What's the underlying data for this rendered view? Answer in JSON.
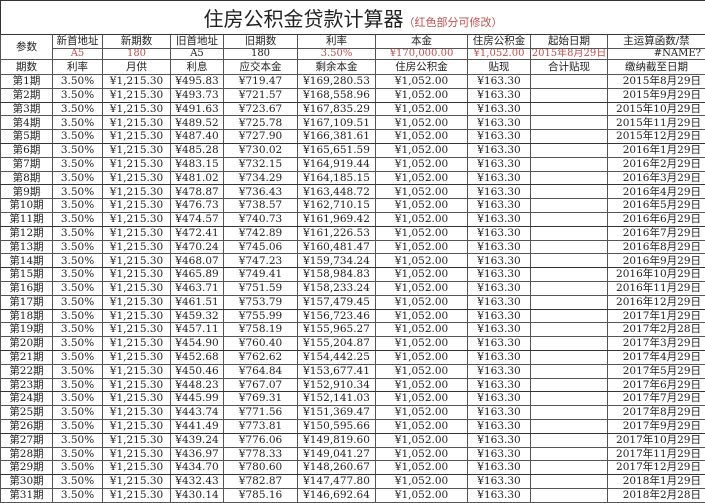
{
  "title": "住房公积金贷款计算器",
  "title_note": "（红色部分可修改）",
  "colors": {
    "editable": "#c0504d",
    "border": "#555555"
  },
  "params": {
    "label": "参数",
    "items": [
      {
        "label": "新首地址",
        "value": "A5",
        "editable": true
      },
      {
        "label": "新期数",
        "value": "180",
        "editable": true
      },
      {
        "label": "旧首地址",
        "value": "A5",
        "editable": false
      },
      {
        "label": "旧期数",
        "value": "180",
        "editable": false
      },
      {
        "label": "利率",
        "value": "3.50%",
        "editable": true
      },
      {
        "label": "本金",
        "value": "¥170,000.00",
        "editable": true
      },
      {
        "label": "住房公积金",
        "value": "¥1,052.00",
        "editable": true
      },
      {
        "label": "起始日期",
        "value": "2015年8月29日",
        "editable": true
      },
      {
        "label": "主运算函数/禁",
        "value": "#NAME?",
        "editable": false
      }
    ]
  },
  "columns": [
    "期数",
    "利率",
    "月供",
    "利息",
    "应交本金",
    "剩余本金",
    "住房公积金",
    "贴现",
    "合计贴现",
    "缴纳截至日期"
  ],
  "rows": [
    [
      "第1期",
      "3.50%",
      "¥1,215.30",
      "¥495.83",
      "¥719.47",
      "¥169,280.53",
      "¥1,052.00",
      "¥163.30",
      "",
      "2015年8月29日"
    ],
    [
      "第2期",
      "3.50%",
      "¥1,215.30",
      "¥493.73",
      "¥721.57",
      "¥168,558.96",
      "¥1,052.00",
      "¥163.30",
      "",
      "2015年9月29日"
    ],
    [
      "第3期",
      "3.50%",
      "¥1,215.30",
      "¥491.63",
      "¥723.67",
      "¥167,835.29",
      "¥1,052.00",
      "¥163.30",
      "",
      "2015年10月29日"
    ],
    [
      "第4期",
      "3.50%",
      "¥1,215.30",
      "¥489.52",
      "¥725.78",
      "¥167,109.51",
      "¥1,052.00",
      "¥163.30",
      "",
      "2015年11月29日"
    ],
    [
      "第5期",
      "3.50%",
      "¥1,215.30",
      "¥487.40",
      "¥727.90",
      "¥166,381.61",
      "¥1,052.00",
      "¥163.30",
      "",
      "2015年12月29日"
    ],
    [
      "第6期",
      "3.50%",
      "¥1,215.30",
      "¥485.28",
      "¥730.02",
      "¥165,651.59",
      "¥1,052.00",
      "¥163.30",
      "",
      "2016年1月29日"
    ],
    [
      "第7期",
      "3.50%",
      "¥1,215.30",
      "¥483.15",
      "¥732.15",
      "¥164,919.44",
      "¥1,052.00",
      "¥163.30",
      "",
      "2016年2月29日"
    ],
    [
      "第8期",
      "3.50%",
      "¥1,215.30",
      "¥481.02",
      "¥734.29",
      "¥164,185.15",
      "¥1,052.00",
      "¥163.30",
      "",
      "2016年3月29日"
    ],
    [
      "第9期",
      "3.50%",
      "¥1,215.30",
      "¥478.87",
      "¥736.43",
      "¥163,448.72",
      "¥1,052.00",
      "¥163.30",
      "",
      "2016年4月29日"
    ],
    [
      "第10期",
      "3.50%",
      "¥1,215.30",
      "¥476.73",
      "¥738.57",
      "¥162,710.15",
      "¥1,052.00",
      "¥163.30",
      "",
      "2016年5月29日"
    ],
    [
      "第11期",
      "3.50%",
      "¥1,215.30",
      "¥474.57",
      "¥740.73",
      "¥161,969.42",
      "¥1,052.00",
      "¥163.30",
      "",
      "2016年6月29日"
    ],
    [
      "第12期",
      "3.50%",
      "¥1,215.30",
      "¥472.41",
      "¥742.89",
      "¥161,226.53",
      "¥1,052.00",
      "¥163.30",
      "",
      "2016年7月29日"
    ],
    [
      "第13期",
      "3.50%",
      "¥1,215.30",
      "¥470.24",
      "¥745.06",
      "¥160,481.47",
      "¥1,052.00",
      "¥163.30",
      "",
      "2016年8月29日"
    ],
    [
      "第14期",
      "3.50%",
      "¥1,215.30",
      "¥468.07",
      "¥747.23",
      "¥159,734.24",
      "¥1,052.00",
      "¥163.30",
      "",
      "2016年9月29日"
    ],
    [
      "第15期",
      "3.50%",
      "¥1,215.30",
      "¥465.89",
      "¥749.41",
      "¥158,984.83",
      "¥1,052.00",
      "¥163.30",
      "",
      "2016年10月29日"
    ],
    [
      "第16期",
      "3.50%",
      "¥1,215.30",
      "¥463.71",
      "¥751.59",
      "¥158,233.24",
      "¥1,052.00",
      "¥163.30",
      "",
      "2016年11月29日"
    ],
    [
      "第17期",
      "3.50%",
      "¥1,215.30",
      "¥461.51",
      "¥753.79",
      "¥157,479.45",
      "¥1,052.00",
      "¥163.30",
      "",
      "2016年12月29日"
    ],
    [
      "第18期",
      "3.50%",
      "¥1,215.30",
      "¥459.32",
      "¥755.99",
      "¥156,723.46",
      "¥1,052.00",
      "¥163.30",
      "",
      "2017年1月29日"
    ],
    [
      "第19期",
      "3.50%",
      "¥1,215.30",
      "¥457.11",
      "¥758.19",
      "¥155,965.27",
      "¥1,052.00",
      "¥163.30",
      "",
      "2017年2月28日"
    ],
    [
      "第20期",
      "3.50%",
      "¥1,215.30",
      "¥454.90",
      "¥760.40",
      "¥155,204.87",
      "¥1,052.00",
      "¥163.30",
      "",
      "2017年3月29日"
    ],
    [
      "第21期",
      "3.50%",
      "¥1,215.30",
      "¥452.68",
      "¥762.62",
      "¥154,442.25",
      "¥1,052.00",
      "¥163.30",
      "",
      "2017年4月29日"
    ],
    [
      "第22期",
      "3.50%",
      "¥1,215.30",
      "¥450.46",
      "¥764.84",
      "¥153,677.41",
      "¥1,052.00",
      "¥163.30",
      "",
      "2017年5月29日"
    ],
    [
      "第23期",
      "3.50%",
      "¥1,215.30",
      "¥448.23",
      "¥767.07",
      "¥152,910.34",
      "¥1,052.00",
      "¥163.30",
      "",
      "2017年6月29日"
    ],
    [
      "第24期",
      "3.50%",
      "¥1,215.30",
      "¥445.99",
      "¥769.31",
      "¥152,141.03",
      "¥1,052.00",
      "¥163.30",
      "",
      "2017年7月29日"
    ],
    [
      "第25期",
      "3.50%",
      "¥1,215.30",
      "¥443.74",
      "¥771.56",
      "¥151,369.47",
      "¥1,052.00",
      "¥163.30",
      "",
      "2017年8月29日"
    ],
    [
      "第26期",
      "3.50%",
      "¥1,215.30",
      "¥441.49",
      "¥773.81",
      "¥150,595.66",
      "¥1,052.00",
      "¥163.30",
      "",
      "2017年9月29日"
    ],
    [
      "第27期",
      "3.50%",
      "¥1,215.30",
      "¥439.24",
      "¥776.06",
      "¥149,819.60",
      "¥1,052.00",
      "¥163.30",
      "",
      "2017年10月29日"
    ],
    [
      "第28期",
      "3.50%",
      "¥1,215.30",
      "¥436.97",
      "¥778.33",
      "¥149,041.27",
      "¥1,052.00",
      "¥163.30",
      "",
      "2017年11月29日"
    ],
    [
      "第29期",
      "3.50%",
      "¥1,215.30",
      "¥434.70",
      "¥780.60",
      "¥148,260.67",
      "¥1,052.00",
      "¥163.30",
      "",
      "2017年12月29日"
    ],
    [
      "第30期",
      "3.50%",
      "¥1,215.30",
      "¥432.43",
      "¥782.87",
      "¥147,477.80",
      "¥1,052.00",
      "¥163.30",
      "",
      "2018年1月29日"
    ],
    [
      "第31期",
      "3.50%",
      "¥1,215.30",
      "¥430.14",
      "¥785.16",
      "¥146,692.64",
      "¥1,052.00",
      "¥163.30",
      "",
      "2018年2月28日"
    ]
  ]
}
